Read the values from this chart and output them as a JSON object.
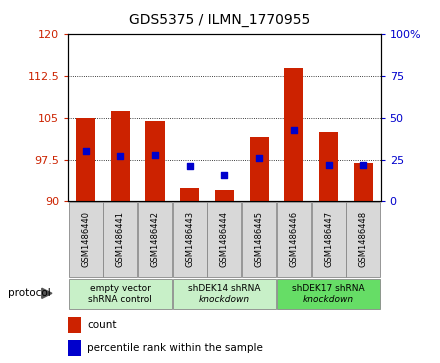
{
  "title": "GDS5375 / ILMN_1770955",
  "samples": [
    "GSM1486440",
    "GSM1486441",
    "GSM1486442",
    "GSM1486443",
    "GSM1486444",
    "GSM1486445",
    "GSM1486446",
    "GSM1486447",
    "GSM1486448"
  ],
  "counts": [
    105.0,
    106.2,
    104.5,
    92.5,
    92.0,
    101.5,
    114.0,
    102.5,
    97.0
  ],
  "percentile_ranks": [
    30,
    27,
    28,
    21,
    16,
    26,
    43,
    22,
    22
  ],
  "ylim_left": [
    90,
    120
  ],
  "yticks_left": [
    90,
    97.5,
    105,
    112.5,
    120
  ],
  "ylim_right": [
    0,
    100
  ],
  "yticks_right": [
    0,
    25,
    50,
    75,
    100
  ],
  "groups": [
    {
      "label_line1": "empty vector",
      "label_line2": "shRNA control",
      "italic": false,
      "start": 0,
      "end": 3,
      "color": "#C8F0C8"
    },
    {
      "label_line1": "shDEK14 shRNA",
      "label_line2": "knockdown",
      "italic": true,
      "start": 3,
      "end": 6,
      "color": "#C8F0C8"
    },
    {
      "label_line1": "shDEK17 shRNA",
      "label_line2": "knockdown",
      "italic": true,
      "start": 6,
      "end": 9,
      "color": "#66DD66"
    }
  ],
  "bar_color": "#CC2200",
  "dot_color": "#0000CC",
  "bar_width": 0.55,
  "bar_bottom": 90,
  "axis_color_left": "#CC2200",
  "axis_color_right": "#0000CC",
  "sample_box_color": "#D8D8D8",
  "sample_box_edge": "#888888",
  "bg_color": "#FFFFFF",
  "protocol_label": "protocol"
}
